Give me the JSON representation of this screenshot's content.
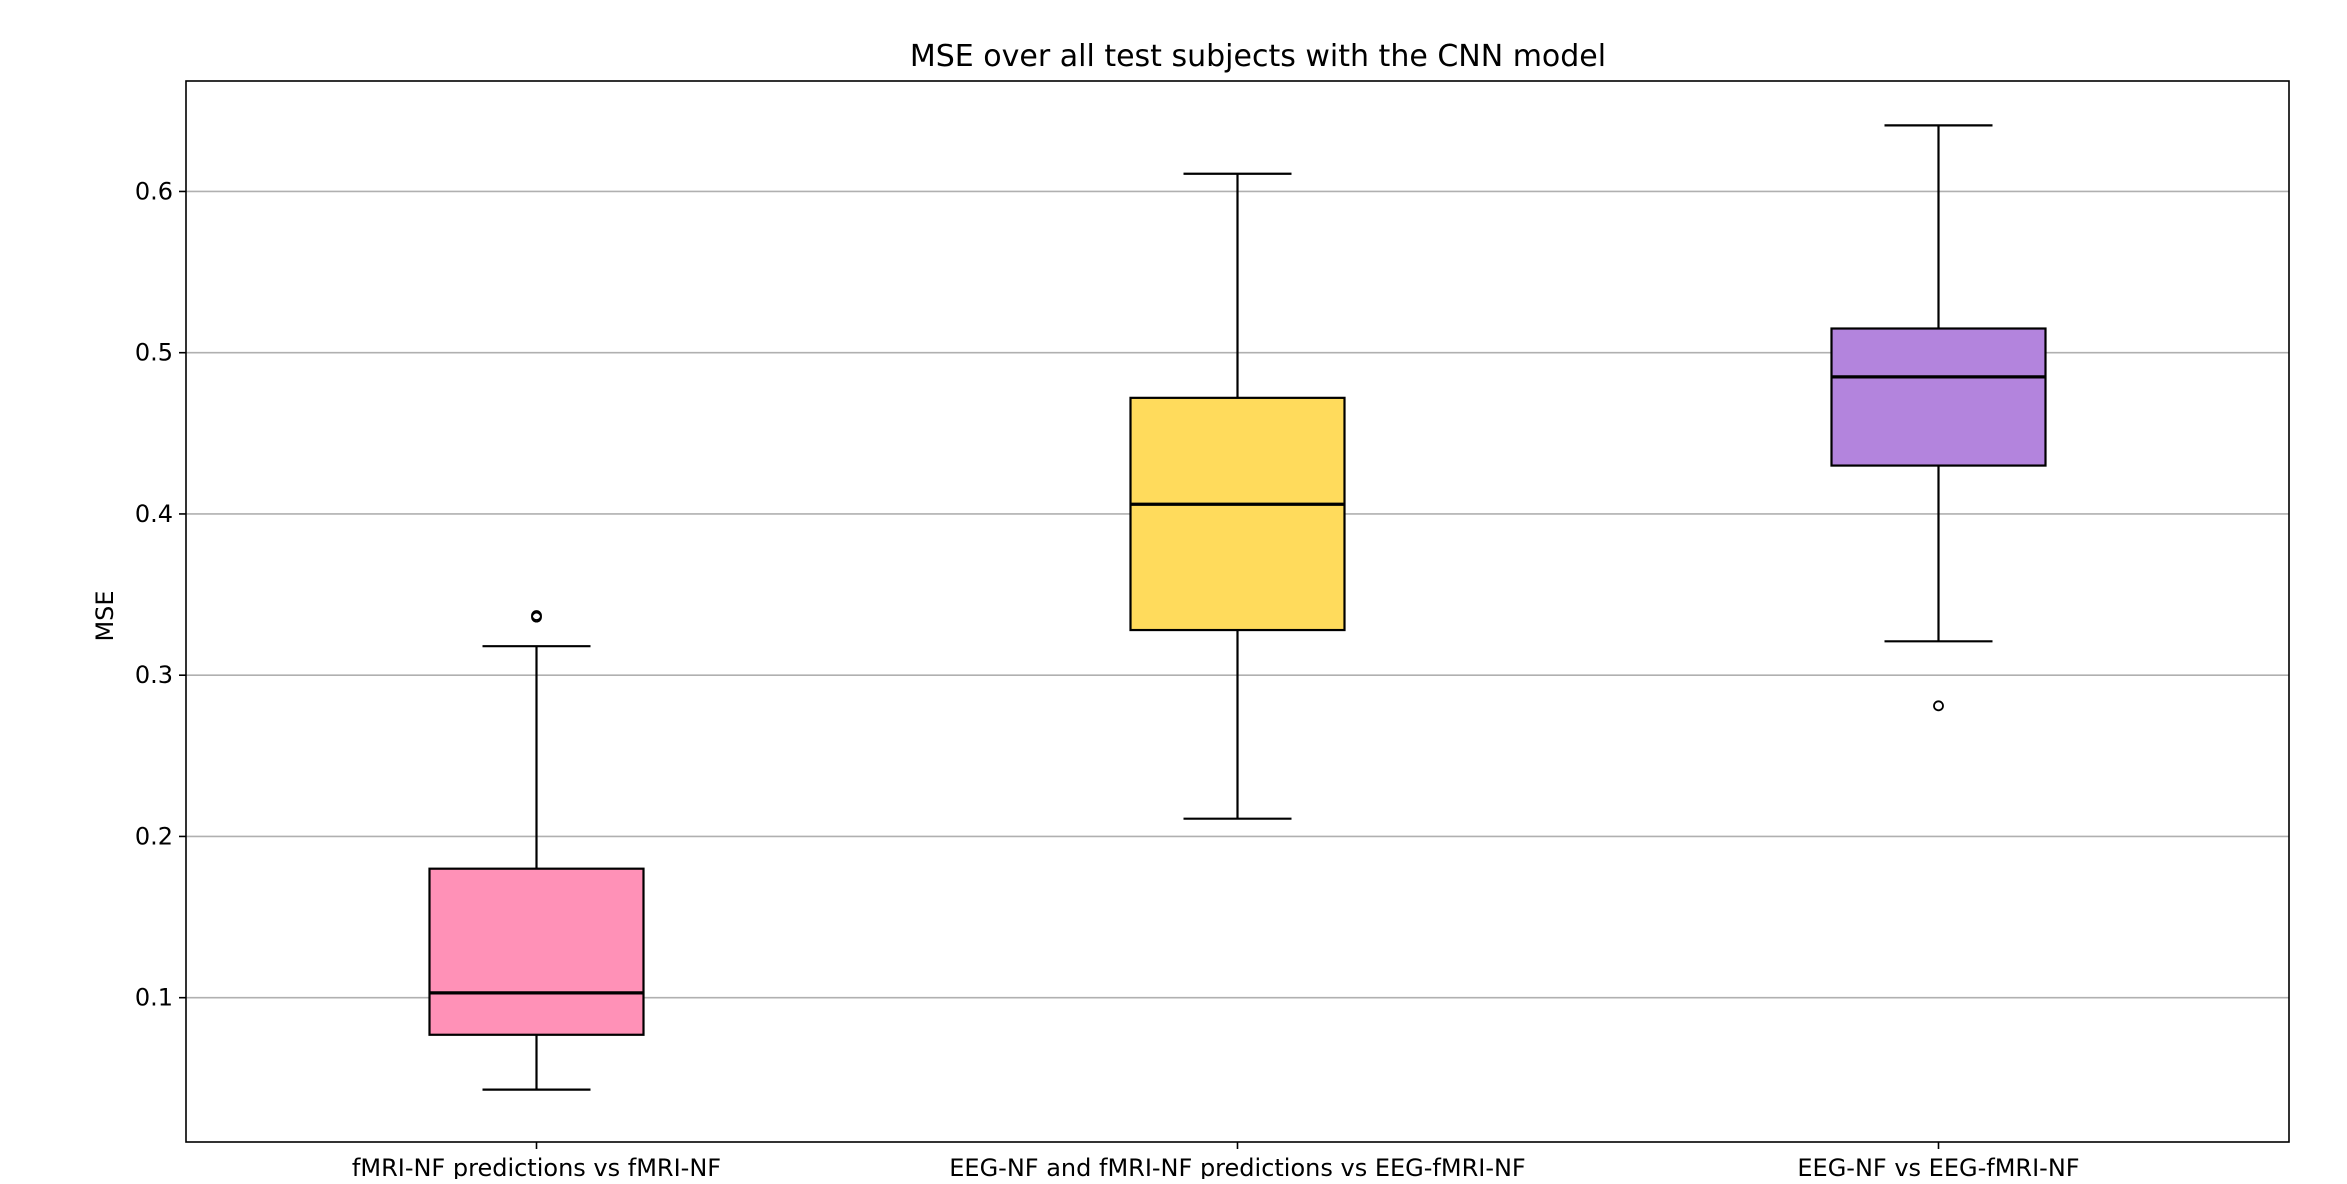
{
  "chart_data": {
    "type": "box",
    "title": "MSE over all test subjects with the CNN model",
    "xlabel": "",
    "ylabel": "MSE",
    "ylim": [
      0.0105,
      0.6685
    ],
    "yticks": [
      0.1,
      0.2,
      0.3,
      0.4,
      0.5,
      0.6
    ],
    "ytick_labels": [
      "0.1",
      "0.2",
      "0.3",
      "0.4",
      "0.5",
      "0.6"
    ],
    "grid": "horizontal",
    "categories": [
      "fMRI-NF predictions vs fMRI-NF",
      "EEG-NF and fMRI-NF predictions vs EEG-fMRI-NF",
      "EEG-NF vs EEG-fMRI-NF"
    ],
    "boxes": [
      {
        "whisker_low": 0.043,
        "q1": 0.077,
        "median": 0.103,
        "q3": 0.18,
        "whisker_high": 0.318,
        "outliers": [
          0.336,
          0.337
        ],
        "color": "#ff91b7"
      },
      {
        "whisker_low": 0.211,
        "q1": 0.328,
        "median": 0.406,
        "q3": 0.472,
        "whisker_high": 0.611,
        "outliers": [],
        "color": "#ffdb5c"
      },
      {
        "whisker_low": 0.321,
        "q1": 0.43,
        "median": 0.485,
        "q3": 0.515,
        "whisker_high": 0.641,
        "outliers": [
          0.281
        ],
        "color": "#b384dd"
      }
    ]
  }
}
